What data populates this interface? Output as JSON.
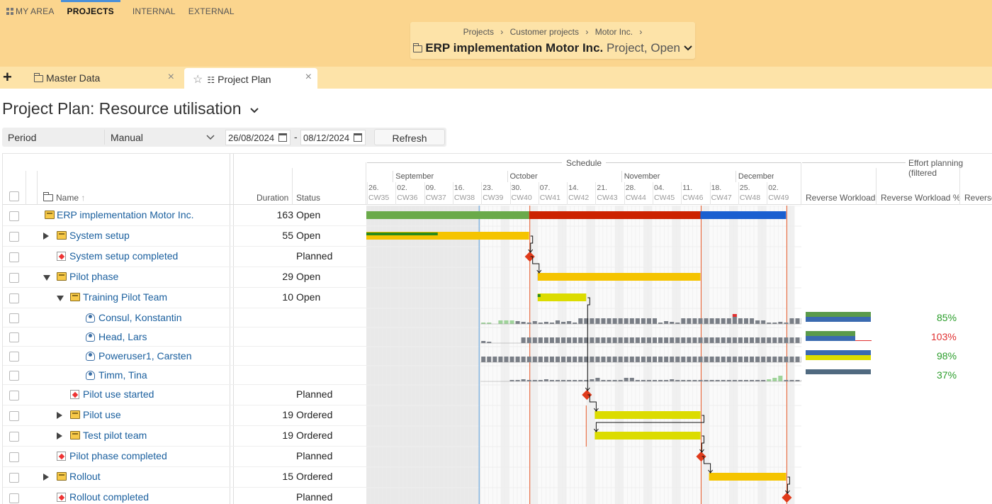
{
  "topnav": {
    "my_area": "MY AREA",
    "projects": "PROJECTS",
    "internal": "INTERNAL",
    "external": "EXTERNAL"
  },
  "breadcrumb": {
    "items": [
      "Projects",
      "Customer projects",
      "Motor Inc."
    ],
    "separator": "›"
  },
  "project": {
    "title": "ERP implementation Motor Inc.",
    "status": "Project, Open"
  },
  "tabs": [
    {
      "label": "Master Data"
    },
    {
      "label": "Project Plan"
    }
  ],
  "page": {
    "title": "Project Plan: Resource utilisation"
  },
  "filter": {
    "label": "Period",
    "mode": "Manual",
    "date_from": "26/08/2024",
    "dash": "-",
    "date_to": "08/12/2024",
    "refresh": "Refresh"
  },
  "columns": {
    "name": "Name",
    "duration": "Duration",
    "status": "Status",
    "schedule": "Schedule",
    "effort": "Effort planning (filtered",
    "rev_workload": "Reverse Workload",
    "rev_workload_pct": "Reverse Workload %",
    "rev_cut": "Reverse"
  },
  "months": [
    {
      "label": "September",
      "week": 2
    },
    {
      "label": "October",
      "week": 6
    },
    {
      "label": "November",
      "week": 10
    },
    {
      "label": "December",
      "week": 14
    }
  ],
  "weeks": [
    {
      "d": "26.",
      "cw": "CW35"
    },
    {
      "d": "02.",
      "cw": "CW36"
    },
    {
      "d": "09.",
      "cw": "CW37"
    },
    {
      "d": "16.",
      "cw": "CW38"
    },
    {
      "d": "23.",
      "cw": "CW39"
    },
    {
      "d": "30.",
      "cw": "CW40"
    },
    {
      "d": "07.",
      "cw": "CW41"
    },
    {
      "d": "14.",
      "cw": "CW42"
    },
    {
      "d": "21.",
      "cw": "CW43"
    },
    {
      "d": "28.",
      "cw": "CW44"
    },
    {
      "d": "04.",
      "cw": "CW45"
    },
    {
      "d": "11.",
      "cw": "CW46"
    },
    {
      "d": "18.",
      "cw": "CW47"
    },
    {
      "d": "25.",
      "cw": "CW48"
    },
    {
      "d": "02.",
      "cw": "CW49"
    }
  ],
  "rows": [
    {
      "name": "ERP implementation Motor Inc.",
      "level": 0,
      "icon": "folder",
      "expander": "",
      "duration": "163",
      "status": "Open"
    },
    {
      "name": "System setup",
      "level": 1,
      "icon": "folder",
      "expander": "right",
      "duration": "55",
      "status": "Open"
    },
    {
      "name": "System setup completed",
      "level": 1,
      "icon": "milestone",
      "expander": "",
      "duration": "",
      "status": "Planned"
    },
    {
      "name": "Pilot phase",
      "level": 1,
      "icon": "folder",
      "expander": "down",
      "duration": "29",
      "status": "Open"
    },
    {
      "name": "Training Pilot Team",
      "level": 2,
      "icon": "folder",
      "expander": "down",
      "duration": "10",
      "status": "Open"
    },
    {
      "name": "Consul, Konstantin",
      "level": 3,
      "icon": "person",
      "expander": "",
      "duration": "",
      "status": "",
      "pct": "85%",
      "pct_color": "#2a9d2a"
    },
    {
      "name": "Head, Lars",
      "level": 3,
      "icon": "person",
      "expander": "",
      "duration": "",
      "status": "",
      "pct": "103%",
      "pct_color": "#e03030"
    },
    {
      "name": "Poweruser1, Carsten",
      "level": 3,
      "icon": "person",
      "expander": "",
      "duration": "",
      "status": "",
      "pct": "98%",
      "pct_color": "#2a9d2a"
    },
    {
      "name": "Timm, Tina",
      "level": 3,
      "icon": "person",
      "expander": "",
      "duration": "",
      "status": "",
      "pct": "37%",
      "pct_color": "#2a9d2a"
    },
    {
      "name": "Pilot use started",
      "level": 2,
      "icon": "milestone",
      "expander": "",
      "duration": "",
      "status": "Planned"
    },
    {
      "name": "Pilot use",
      "level": 2,
      "icon": "folder",
      "expander": "right",
      "duration": "19",
      "status": "Ordered"
    },
    {
      "name": "Test pilot team",
      "level": 2,
      "icon": "folder",
      "expander": "right",
      "duration": "19",
      "status": "Ordered"
    },
    {
      "name": "Pilot phase completed",
      "level": 1,
      "icon": "milestone",
      "expander": "",
      "duration": "",
      "status": "Planned"
    },
    {
      "name": "Rollout",
      "level": 1,
      "icon": "folder",
      "expander": "right",
      "duration": "15",
      "status": "Ordered"
    },
    {
      "name": "Rollout completed",
      "level": 1,
      "icon": "milestone",
      "expander": "",
      "duration": "",
      "status": "Planned"
    }
  ],
  "gantt": {
    "bars": [
      {
        "row": 0,
        "segments": [
          {
            "start": 0,
            "end": 5.7,
            "color": "#6aaa4a"
          },
          {
            "start": 5.7,
            "end": 11.7,
            "color": "#cc2200"
          },
          {
            "start": 11.7,
            "end": 14.7,
            "color": "#1a5fd0"
          }
        ]
      },
      {
        "row": 1,
        "segments": [
          {
            "start": 0,
            "end": 5.7,
            "color": "#f5c400"
          }
        ],
        "progress": {
          "end": 2.5,
          "color": "#2a8a1a"
        }
      },
      {
        "row": 3,
        "segments": [
          {
            "start": 6,
            "end": 11.7,
            "color": "#f5c400"
          }
        ],
        "fade_from": "#777777",
        "fade_to": 3.6
      },
      {
        "row": 4,
        "segments": [
          {
            "start": 6,
            "end": 7.7,
            "color": "#dcdc00"
          }
        ],
        "progress": {
          "end": 6.1,
          "color": "#2a8a1a"
        }
      },
      {
        "row": 10,
        "segments": [
          {
            "start": 8,
            "end": 11.7,
            "color": "#dcdc00"
          }
        ]
      },
      {
        "row": 11,
        "segments": [
          {
            "start": 8,
            "end": 11.7,
            "color": "#dcdc00"
          }
        ]
      },
      {
        "row": 13,
        "segments": [
          {
            "start": 12,
            "end": 14.7,
            "color": "#f5c400"
          }
        ]
      }
    ],
    "milestones": [
      {
        "row": 2,
        "week": 5.7
      },
      {
        "row": 9,
        "week": 7.7
      },
      {
        "row": 12,
        "week": 11.7
      },
      {
        "row": 14,
        "week": 14.7
      }
    ],
    "today_week": 4,
    "red_lines": [
      5.7,
      11.7,
      14.7
    ],
    "utilisation": [
      {
        "row": 5,
        "values": [
          0.2,
          0.2,
          0,
          0.5,
          0.5,
          0.5,
          0.4,
          0.3,
          0.2,
          0.4,
          0.2,
          0.3,
          0.2,
          0.5,
          0.3,
          0.4,
          0.2,
          0.8,
          0.8,
          0.8,
          0.8,
          0.8,
          0.8,
          0.8,
          0.8,
          0.8,
          0.8,
          0.8,
          0.8,
          0.8,
          0.8,
          0.2,
          0.4,
          0.3,
          0.2,
          0.8,
          0.8,
          0.8,
          0.8,
          0.8,
          0.8,
          0.8,
          0.8,
          0.8,
          1.1,
          0.8,
          0.8,
          0.8,
          0.5,
          0.5,
          0.2,
          0.2,
          0.3,
          0.2,
          0.8,
          0.8,
          0.8,
          0.8,
          0.8
        ]
      },
      {
        "row": 6,
        "values": [
          0.3,
          0.2,
          0,
          0,
          0,
          0,
          0,
          0.8,
          0.8,
          0.8,
          0.8,
          0.8,
          0.8,
          0.8,
          0.8,
          0.8,
          0.8,
          0.8,
          0.8,
          0.8,
          0.8,
          0.8,
          0.8,
          0.8,
          0.8,
          0.8,
          0.8,
          0.8,
          0.8,
          0.8,
          0.8,
          0.8,
          0.8,
          0.8,
          0.8,
          0.8,
          0.8,
          0.8,
          0.8,
          0.8,
          0.8,
          0.8,
          0.8,
          0.8,
          0.8,
          0.8,
          0.8,
          0.8,
          0.8,
          0.8,
          0.8,
          0.8,
          0.8,
          0.8,
          0.8,
          0.8,
          0.8,
          0.8,
          1.1
        ]
      },
      {
        "row": 7,
        "values": [
          0.8,
          0.8,
          0.8,
          0.8,
          0.8,
          0.8,
          0.8,
          0.8,
          0.8,
          0.8,
          0.8,
          0.8,
          0.8,
          0.8,
          0.8,
          0.8,
          0.8,
          0.8,
          0.8,
          0.8,
          0.8,
          0.8,
          0.8,
          0.8,
          0.8,
          0.8,
          0.8,
          0.8,
          0.8,
          0.8,
          0.8,
          0.8,
          0.8,
          0.8,
          0.8,
          0.8,
          0.8,
          0.8,
          0.8,
          0.8,
          0.8,
          0.8,
          0.8,
          0.8,
          0.8,
          0.8,
          0.8,
          0.8,
          0.8,
          0.8,
          0.8,
          0.8,
          0.8,
          0.8,
          0.8,
          0.8,
          0.8,
          0.8,
          0.8
        ]
      },
      {
        "row": 8,
        "values": [
          0,
          0,
          0,
          0,
          0,
          0.2,
          0.2,
          0.3,
          0.2,
          0.2,
          0.2,
          0.3,
          0.2,
          0.2,
          0.2,
          0.2,
          0.2,
          0.2,
          0.2,
          0.3,
          0.5,
          0.2,
          0.2,
          0.2,
          0.2,
          0.5,
          0.5,
          0.2,
          0.2,
          0.2,
          0.2,
          0.2,
          0.2,
          0.3,
          0.2,
          0.2,
          0.2,
          0.2,
          0.2,
          0.2,
          0.2,
          0.2,
          0.2,
          0.2,
          0.2,
          0.2,
          0.2,
          0.2,
          0.2,
          0.2,
          0.3,
          0.5,
          0.8,
          0.2,
          0.2,
          0.2,
          0.2,
          0.2,
          0.3
        ]
      }
    ],
    "effort_bars": [
      {
        "row": 5,
        "bars": [
          {
            "fraction": 1.0,
            "color": "#5a9a4a"
          },
          {
            "fraction": 1.0,
            "color": "#3a6ab0"
          }
        ]
      },
      {
        "row": 6,
        "bars": [
          {
            "fraction": 0.76,
            "color": "#5a9a4a"
          },
          {
            "fraction": 0.76,
            "color": "#3a6ab0"
          }
        ]
      },
      {
        "row": 7,
        "bars": [
          {
            "fraction": 1.0,
            "color": "#3a6ab0"
          },
          {
            "fraction": 1.0,
            "color": "#dcdc00"
          }
        ]
      },
      {
        "row": 8,
        "bars": [
          {
            "fraction": 1.0,
            "color": "#506a80"
          }
        ]
      }
    ]
  }
}
